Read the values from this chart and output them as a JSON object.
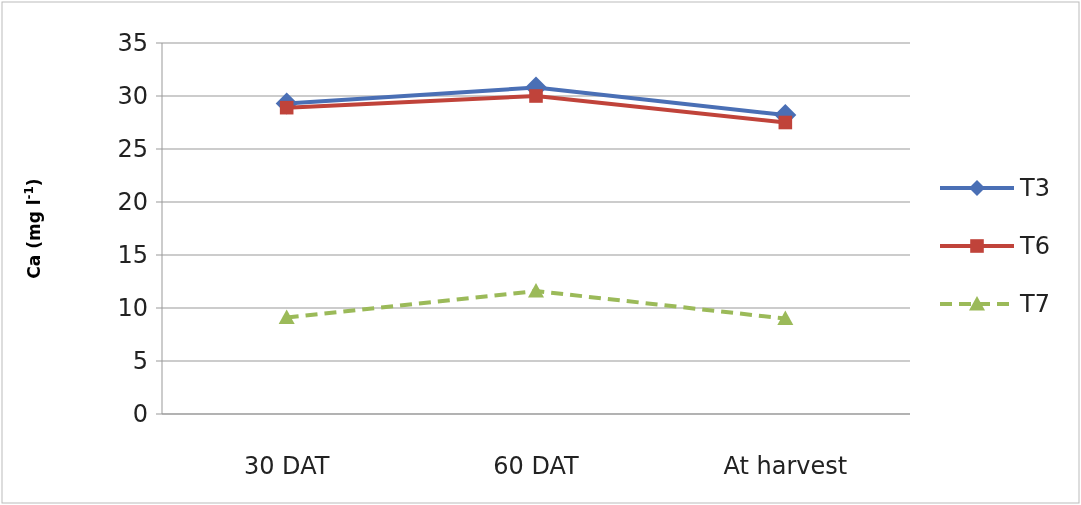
{
  "chart_data": {
    "type": "line",
    "ylabel": "Ca (mg l$^{-1}$)",
    "categories": [
      "30 DAT",
      "60 DAT",
      "At harvest"
    ],
    "ylim": [
      0,
      35
    ],
    "yticks": [
      0,
      5,
      10,
      15,
      20,
      25,
      30,
      35
    ],
    "grid": "y",
    "legend": "right",
    "series": [
      {
        "name": "T3",
        "color": "#4a6fb5",
        "values": [
          29.3,
          30.8,
          28.2
        ],
        "marker": "diamond",
        "line_style": "solid"
      },
      {
        "name": "T6",
        "color": "#c0433a",
        "values": [
          28.9,
          30.0,
          27.5
        ],
        "marker": "square",
        "line_style": "solid"
      },
      {
        "name": "T7",
        "color": "#9bba59",
        "values": [
          9.1,
          11.6,
          9.0
        ],
        "marker": "triangle",
        "line_style": "dashed"
      }
    ]
  }
}
